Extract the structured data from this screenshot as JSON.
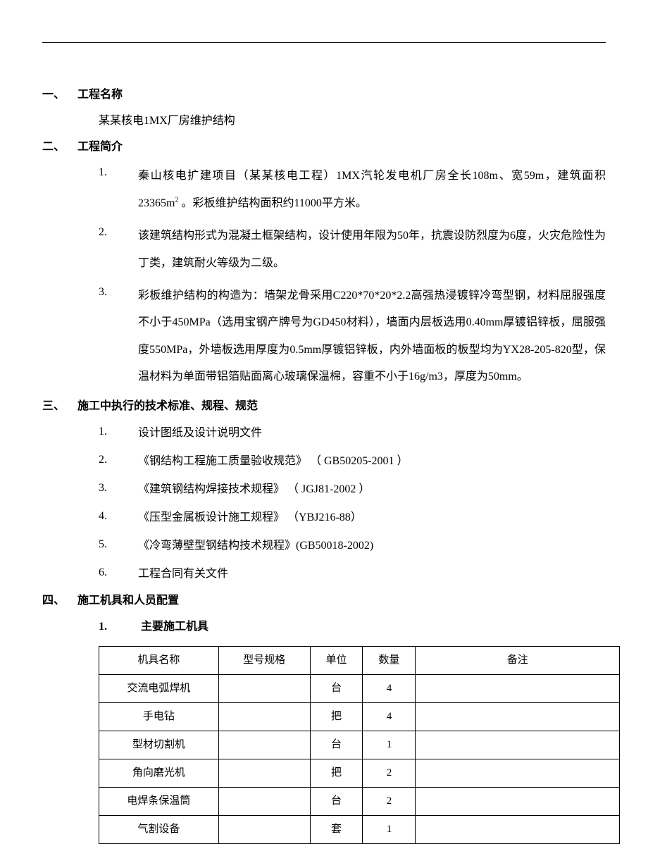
{
  "sections": {
    "s1": {
      "num": "一、",
      "title": "工程名称",
      "body": "某某核电1MX厂房维护结构"
    },
    "s2": {
      "num": "二、",
      "title": "工程简介",
      "items": [
        {
          "n": "1.",
          "text_a": "秦山核电扩建项目（某某核电工程）1MX汽轮发电机厂房全长108m、宽59m，建筑面积23365m",
          "sup": "2",
          "text_b": " 。彩板维护结构面积约11000平方米。"
        },
        {
          "n": "2.",
          "text": "该建筑结构形式为混凝土框架结构，设计使用年限为50年，抗震设防烈度为6度，火灾危险性为丁类，建筑耐火等级为二级。"
        },
        {
          "n": "3.",
          "text": "彩板维护结构的构造为：墙架龙骨采用C220*70*20*2.2高强热浸镀锌冷弯型钢，材料屈服强度不小于450MPa（选用宝钢产牌号为GD450材料），墙面内层板选用0.40mm厚镀铝锌板，屈服强度550MPa，外墙板选用厚度为0.5mm厚镀铝锌板，内外墙面板的板型均为YX28-205-820型，保温材料为单面带铝箔贴面离心玻璃保温棉，容重不小于16g/m3，厚度为50mm。"
        }
      ]
    },
    "s3": {
      "num": "三、",
      "title": "施工中执行的技术标准、规程、规范",
      "items": [
        {
          "n": "1.",
          "text": "设计图纸及设计说明文件"
        },
        {
          "n": "2.",
          "text": "《钢结构工程施工质量验收规范》 （ GB50205-2001 ）"
        },
        {
          "n": "3.",
          "text": "《建筑钢结构焊接技术规程》 （ JGJ81-2002 ）"
        },
        {
          "n": "4.",
          "text": "《压型金属板设计施工规程》 （YBJ216-88）"
        },
        {
          "n": "5.",
          "text": "《冷弯薄壁型钢结构技术规程》(GB50018-2002)"
        },
        {
          "n": "6.",
          "text": "工程合同有关文件"
        }
      ]
    },
    "s4": {
      "num": "四、",
      "title": "施工机具和人员配置",
      "sub": {
        "n": "1.",
        "title": "主要施工机具"
      }
    }
  },
  "table": {
    "headers": {
      "name": "机具名称",
      "spec": "型号规格",
      "unit": "单位",
      "qty": "数量",
      "note": "备注"
    },
    "rows": [
      {
        "name": "交流电弧焊机",
        "spec": "",
        "unit": "台",
        "qty": "4",
        "note": ""
      },
      {
        "name": "手电钻",
        "spec": "",
        "unit": "把",
        "qty": "4",
        "note": ""
      },
      {
        "name": "型材切割机",
        "spec": "",
        "unit": "台",
        "qty": "1",
        "note": ""
      },
      {
        "name": "角向磨光机",
        "spec": "",
        "unit": "把",
        "qty": "2",
        "note": ""
      },
      {
        "name": "电焊条保温筒",
        "spec": "",
        "unit": "台",
        "qty": "2",
        "note": ""
      },
      {
        "name": "气割设备",
        "spec": "",
        "unit": "套",
        "qty": "1",
        "note": ""
      }
    ]
  }
}
